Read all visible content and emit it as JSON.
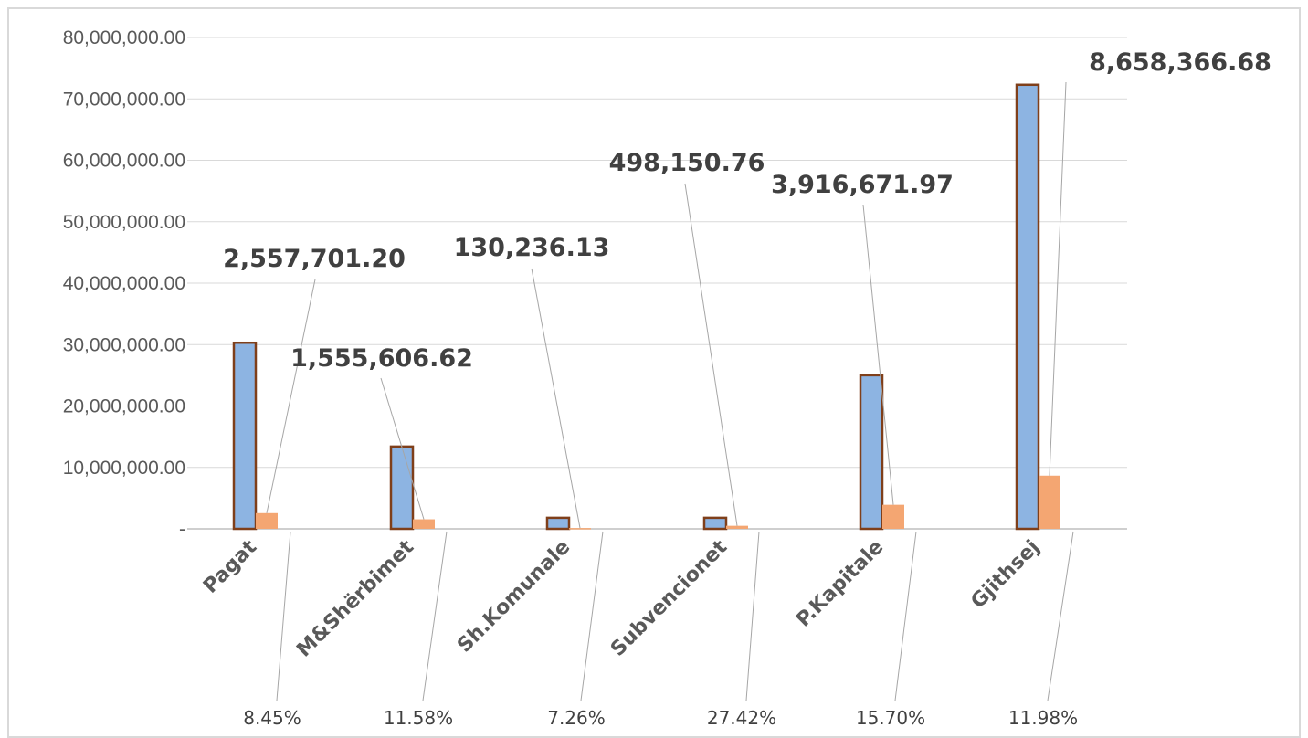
{
  "chart_data": {
    "type": "bar",
    "categories": [
      "Pagat",
      "M&Shërbimet",
      "Sh.Komunale",
      "Subvencionet",
      "P.Kapitale",
      "Gjithsej"
    ],
    "series": [
      {
        "values": [
          30300000,
          13400000,
          1800000,
          1800000,
          25000000,
          72300000
        ],
        "color": "#8db4e2",
        "border": "#7f3f1a"
      },
      {
        "values": [
          2557701.2,
          1555606.62,
          130236.13,
          498150.76,
          3916671.97,
          8658366.68
        ],
        "color": "#f4a672"
      }
    ],
    "data_labels": [
      "2,557,701.20",
      "1,555,606.62",
      "130,236.13",
      "498,150.76",
      "3,916,671.97",
      "8,658,366.68"
    ],
    "percent_labels": [
      "8.45%",
      "11.58%",
      "7.26%",
      "27.42%",
      "15.70%",
      "11.98%"
    ],
    "y_tick_labels": [
      "-",
      "10,000,000.00",
      "20,000,000.00",
      "30,000,000.00",
      "40,000,000.00",
      "50,000,000.00",
      "60,000,000.00",
      "70,000,000.00",
      "80,000,000.00"
    ],
    "ylim": [
      0,
      80000000
    ],
    "grid": true
  }
}
